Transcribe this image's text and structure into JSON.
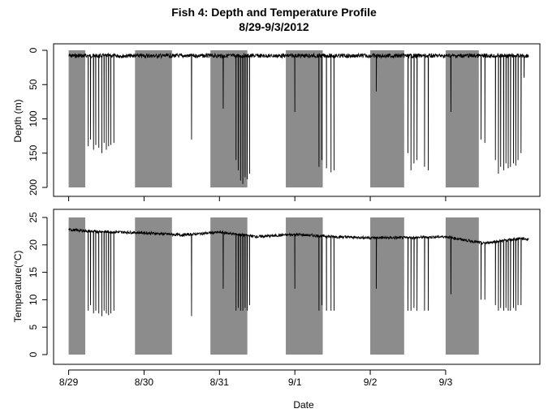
{
  "chart_data": {
    "type": "line",
    "title": "Fish 4: Depth and Temperature Profile",
    "subtitle": "8/29-9/3/2012",
    "xlabel": "Date",
    "x_tick_labels": [
      "8/29",
      "8/30",
      "8/31",
      "9/1",
      "9/2",
      "9/3"
    ],
    "x_tick_days": [
      0,
      1,
      2,
      3,
      4,
      5
    ],
    "xlim_days": [
      -0.2,
      6.25
    ],
    "night_band_color": "#8c8c8c",
    "line_color": "#000000",
    "night_bands_days": [
      [
        0.0,
        0.22
      ],
      [
        0.88,
        1.37
      ],
      [
        1.88,
        2.37
      ],
      [
        2.88,
        3.37
      ],
      [
        4.0,
        4.45
      ],
      [
        5.0,
        5.44
      ]
    ],
    "panels": [
      {
        "name": "depth",
        "ylabel": "Depth (m)",
        "reversed": true,
        "ylim": [
          0,
          200
        ],
        "y_ticks": [
          0,
          50,
          100,
          150,
          200
        ],
        "night_band_range": [
          0,
          200
        ],
        "baseline": 8,
        "base_noise": 3,
        "dives": [
          [
            0.26,
            140
          ],
          [
            0.29,
            130
          ],
          [
            0.33,
            145
          ],
          [
            0.36,
            138
          ],
          [
            0.4,
            142
          ],
          [
            0.44,
            150
          ],
          [
            0.47,
            135
          ],
          [
            0.5,
            145
          ],
          [
            0.53,
            140
          ],
          [
            0.56,
            138
          ],
          [
            0.6,
            135
          ],
          [
            1.63,
            130
          ],
          [
            2.05,
            85
          ],
          [
            2.22,
            160
          ],
          [
            2.25,
            175
          ],
          [
            2.28,
            190
          ],
          [
            2.31,
            195
          ],
          [
            2.34,
            185
          ],
          [
            2.37,
            188
          ],
          [
            2.4,
            180
          ],
          [
            3.0,
            90
          ],
          [
            3.32,
            170
          ],
          [
            3.36,
            160
          ],
          [
            3.42,
            172
          ],
          [
            3.48,
            178
          ],
          [
            3.52,
            175
          ],
          [
            4.08,
            60
          ],
          [
            4.5,
            150
          ],
          [
            4.54,
            175
          ],
          [
            4.58,
            165
          ],
          [
            4.62,
            160
          ],
          [
            4.72,
            170
          ],
          [
            4.77,
            175
          ],
          [
            5.07,
            90
          ],
          [
            5.47,
            130
          ],
          [
            5.52,
            135
          ],
          [
            5.66,
            160
          ],
          [
            5.7,
            180
          ],
          [
            5.73,
            170
          ],
          [
            5.77,
            175
          ],
          [
            5.8,
            165
          ],
          [
            5.83,
            172
          ],
          [
            5.86,
            170
          ],
          [
            5.9,
            165
          ],
          [
            5.93,
            168
          ],
          [
            5.96,
            160
          ],
          [
            6.0,
            150
          ],
          [
            6.04,
            40
          ]
        ]
      },
      {
        "name": "temperature",
        "ylabel": "Temperature(°C)",
        "reversed": false,
        "ylim": [
          0,
          25
        ],
        "y_ticks": [
          0,
          5,
          10,
          15,
          20,
          25
        ],
        "night_band_range": [
          0,
          25
        ],
        "baseline_points": [
          [
            0.0,
            22.8
          ],
          [
            0.25,
            22.5
          ],
          [
            1.0,
            22.2
          ],
          [
            1.5,
            21.8
          ],
          [
            2.0,
            22.3
          ],
          [
            2.5,
            21.5
          ],
          [
            3.0,
            21.9
          ],
          [
            3.5,
            21.5
          ],
          [
            4.0,
            21.3
          ],
          [
            4.5,
            21.3
          ],
          [
            5.0,
            21.5
          ],
          [
            5.5,
            20.3
          ],
          [
            6.0,
            21.2
          ],
          [
            6.1,
            21.0
          ]
        ],
        "base_noise": 0.25,
        "dives": [
          [
            0.26,
            8
          ],
          [
            0.29,
            9
          ],
          [
            0.33,
            7.5
          ],
          [
            0.36,
            8
          ],
          [
            0.4,
            7.5
          ],
          [
            0.44,
            7
          ],
          [
            0.47,
            8
          ],
          [
            0.5,
            7.5
          ],
          [
            0.53,
            7.2
          ],
          [
            0.56,
            7.5
          ],
          [
            0.6,
            8
          ],
          [
            1.63,
            7
          ],
          [
            2.05,
            12
          ],
          [
            2.22,
            8
          ],
          [
            2.25,
            8.5
          ],
          [
            2.28,
            8
          ],
          [
            2.31,
            8
          ],
          [
            2.34,
            8.5
          ],
          [
            2.37,
            8
          ],
          [
            2.4,
            9
          ],
          [
            3.0,
            12
          ],
          [
            3.32,
            8
          ],
          [
            3.36,
            9
          ],
          [
            3.42,
            8
          ],
          [
            3.48,
            8
          ],
          [
            3.52,
            8
          ],
          [
            4.08,
            12
          ],
          [
            4.5,
            8
          ],
          [
            4.54,
            8
          ],
          [
            4.58,
            8.5
          ],
          [
            4.62,
            8
          ],
          [
            4.72,
            8
          ],
          [
            4.77,
            8
          ],
          [
            5.07,
            11
          ],
          [
            5.47,
            10
          ],
          [
            5.52,
            10
          ],
          [
            5.66,
            9
          ],
          [
            5.7,
            8
          ],
          [
            5.73,
            8.5
          ],
          [
            5.77,
            8
          ],
          [
            5.8,
            8.5
          ],
          [
            5.83,
            8
          ],
          [
            5.86,
            8
          ],
          [
            5.9,
            8.5
          ],
          [
            5.93,
            8
          ],
          [
            5.96,
            9
          ],
          [
            6.0,
            9
          ]
        ]
      }
    ]
  }
}
